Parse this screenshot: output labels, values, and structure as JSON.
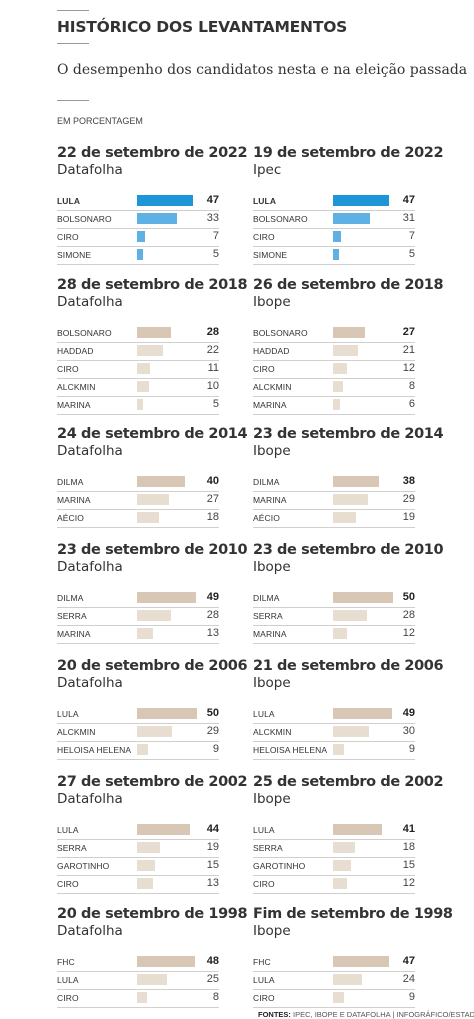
{
  "header": {
    "title": "HISTÓRICO DOS LEVANTAMENTOS",
    "subtitle": "O desempenho dos candidatos nesta e na eleição passada",
    "unit": "EM PORCENTAGEM"
  },
  "footer": {
    "label": "FONTES:",
    "text": "IPEC, IBOPE E DATAFOLHA | INFOGRÁFICO/ESTADÃO"
  },
  "colors": {
    "current_leader": "#1e95d6",
    "current_other": "#5fb1e4",
    "past_leader": "#d8c7b5",
    "past_other": "#e8ddd1"
  },
  "chart_data": [
    {
      "type": "bar",
      "title": "22 de setembro de 2022",
      "subtitle": "Datafolha",
      "categories": [
        "LULA",
        "BOLSONARO",
        "CIRO",
        "SIMONE"
      ],
      "values": [
        47,
        33,
        7,
        5
      ],
      "current": true
    },
    {
      "type": "bar",
      "title": "19 de setembro de 2022",
      "subtitle": "Ipec",
      "categories": [
        "LULA",
        "BOLSONARO",
        "CIRO",
        "SIMONE"
      ],
      "values": [
        47,
        31,
        7,
        5
      ],
      "current": true
    },
    {
      "type": "bar",
      "title": "28 de setembro de 2018",
      "subtitle": "Datafolha",
      "categories": [
        "BOLSONARO",
        "HADDAD",
        "CIRO",
        "ALCKMIN",
        "MARINA"
      ],
      "values": [
        28,
        22,
        11,
        10,
        5
      ]
    },
    {
      "type": "bar",
      "title": "26 de setembro de 2018",
      "subtitle": "Ibope",
      "categories": [
        "BOLSONARO",
        "HADDAD",
        "CIRO",
        "ALCKMIN",
        "MARINA"
      ],
      "values": [
        27,
        21,
        12,
        8,
        6
      ]
    },
    {
      "type": "bar",
      "title": "24 de setembro de 2014",
      "subtitle": "Datafolha",
      "categories": [
        "DILMA",
        "MARINA",
        "AÉCIO"
      ],
      "values": [
        40,
        27,
        18
      ]
    },
    {
      "type": "bar",
      "title": "23 de setembro de 2014",
      "subtitle": "Ibope",
      "categories": [
        "DILMA",
        "MARINA",
        "AÉCIO"
      ],
      "values": [
        38,
        29,
        19
      ]
    },
    {
      "type": "bar",
      "title": "23 de setembro de 2010",
      "subtitle": "Datafolha",
      "categories": [
        "DILMA",
        "SERRA",
        "MARINA"
      ],
      "values": [
        49,
        28,
        13
      ]
    },
    {
      "type": "bar",
      "title": "23 de setembro de 2010",
      "subtitle": "Ibope",
      "categories": [
        "DILMA",
        "SERRA",
        "MARINA"
      ],
      "values": [
        50,
        28,
        12
      ]
    },
    {
      "type": "bar",
      "title": "20 de setembro de 2006",
      "subtitle": "Datafolha",
      "categories": [
        "LULA",
        "ALCKMIN",
        "HELOISA HELENA"
      ],
      "values": [
        50,
        29,
        9
      ]
    },
    {
      "type": "bar",
      "title": "21 de setembro de 2006",
      "subtitle": "Ibope",
      "categories": [
        "LULA",
        "ALCKMIN",
        "HELOISA HELENA"
      ],
      "values": [
        49,
        30,
        9
      ]
    },
    {
      "type": "bar",
      "title": "27 de setembro de 2002",
      "subtitle": "Datafolha",
      "categories": [
        "LULA",
        "SERRA",
        "GAROTINHO",
        "CIRO"
      ],
      "values": [
        44,
        19,
        15,
        13
      ]
    },
    {
      "type": "bar",
      "title": "25 de setembro de 2002",
      "subtitle": "Ibope",
      "categories": [
        "LULA",
        "SERRA",
        "GAROTINHO",
        "CIRO"
      ],
      "values": [
        41,
        18,
        15,
        12
      ]
    },
    {
      "type": "bar",
      "title": "20 de setembro de 1998",
      "subtitle": "Datafolha",
      "categories": [
        "FHC",
        "LULA",
        "CIRO"
      ],
      "values": [
        48,
        25,
        8
      ]
    },
    {
      "type": "bar",
      "title": "Fim de setembro de 1998",
      "subtitle": "Ibope",
      "categories": [
        "FHC",
        "LULA",
        "CIRO"
      ],
      "values": [
        47,
        24,
        9
      ]
    }
  ]
}
